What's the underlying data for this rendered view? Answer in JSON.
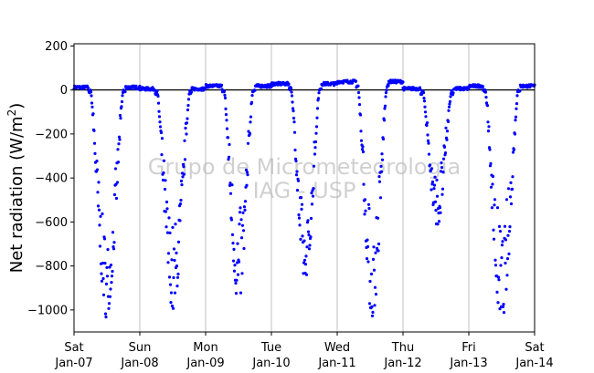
{
  "chart_data": {
    "type": "scatter",
    "title": "",
    "ylabel_main": "Net radiation (W/m",
    "ylabel_sup": "2",
    "ylabel_close": ")",
    "xlabel": "",
    "ylim": [
      -1100,
      210
    ],
    "xlim": [
      0,
      7
    ],
    "yticks": [
      200,
      0,
      -200,
      -400,
      -600,
      -800,
      -1000
    ],
    "ytick_labels": [
      "200",
      "0",
      "−200",
      "−400",
      "−600",
      "−800",
      "−1000"
    ],
    "xticks": [
      {
        "x": 0,
        "day": "Sat",
        "date": "Jan-07"
      },
      {
        "x": 1,
        "day": "Sun",
        "date": "Jan-08"
      },
      {
        "x": 2,
        "day": "Mon",
        "date": "Jan-09"
      },
      {
        "x": 3,
        "day": "Tue",
        "date": "Jan-10"
      },
      {
        "x": 4,
        "day": "Wed",
        "date": "Jan-11"
      },
      {
        "x": 5,
        "day": "Thu",
        "date": "Jan-12"
      },
      {
        "x": 6,
        "day": "Fri",
        "date": "Jan-13"
      },
      {
        "x": 7,
        "day": "Sat",
        "date": "Jan-14"
      }
    ],
    "grid": "vertical",
    "zero_line": true,
    "marker_color": "#0000ff",
    "watermark_lines": [
      "Grupo de Micrometeorologia",
      "IAG - USP"
    ],
    "days": [
      {
        "night": 12,
        "day_start": 0.25,
        "day_end": 0.75,
        "peak": -1020,
        "jitter": 0.38
      },
      {
        "night": 5,
        "day_start": 0.26,
        "day_end": 0.76,
        "peak": -990,
        "jitter": 0.4
      },
      {
        "night": 18,
        "day_start": 0.28,
        "day_end": 0.72,
        "peak": -960,
        "jitter": 0.45
      },
      {
        "night": 28,
        "day_start": 0.3,
        "day_end": 0.73,
        "peak": -870,
        "jitter": 0.35
      },
      {
        "night": 38,
        "day_start": 0.32,
        "day_end": 0.75,
        "peak": -1030,
        "jitter": 0.45
      },
      {
        "night": 6,
        "day_start": 0.3,
        "day_end": 0.74,
        "peak": -610,
        "jitter": 0.4
      },
      {
        "night": 18,
        "day_start": 0.25,
        "day_end": 0.75,
        "peak": -1065,
        "jitter": 0.45
      }
    ]
  }
}
